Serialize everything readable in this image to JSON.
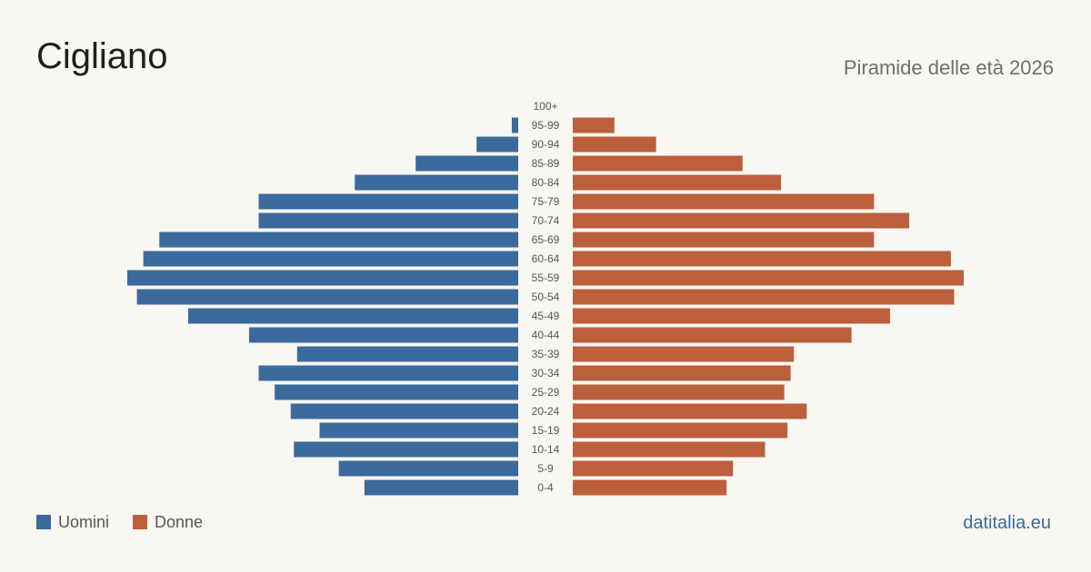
{
  "title": "Cigliano",
  "subtitle": "Piramide delle età 2026",
  "source": "datitalia.eu",
  "colors": {
    "men": "#3b6a9c",
    "women": "#bb5f3c",
    "label": "#555555"
  },
  "legend": {
    "men_label": "Uomini",
    "women_label": "Donne"
  },
  "chart_data": {
    "type": "bar",
    "orientation": "horizontal-diverging",
    "categories": [
      "100+",
      "95-99",
      "90-94",
      "85-89",
      "80-84",
      "75-79",
      "70-74",
      "65-69",
      "60-64",
      "55-59",
      "50-54",
      "45-49",
      "40-44",
      "35-39",
      "30-34",
      "25-29",
      "20-24",
      "15-19",
      "10-14",
      "5-9",
      "0-4"
    ],
    "series": [
      {
        "name": "Uomini",
        "values": [
          0,
          2,
          13,
          32,
          51,
          81,
          81,
          112,
          117,
          122,
          119,
          103,
          84,
          69,
          81,
          76,
          71,
          62,
          70,
          56,
          48
        ]
      },
      {
        "name": "Donne",
        "values": [
          0,
          13,
          26,
          53,
          65,
          94,
          105,
          94,
          118,
          122,
          119,
          99,
          87,
          69,
          68,
          66,
          73,
          67,
          60,
          50,
          48
        ]
      }
    ],
    "xlim": [
      0,
      122
    ],
    "grid": false,
    "legend_position": "bottom-left"
  }
}
